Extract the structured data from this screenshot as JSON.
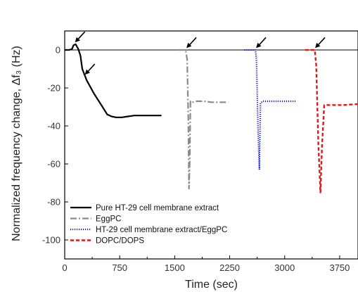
{
  "chart_data": {
    "type": "line",
    "xlabel": "Time (sec)",
    "ylabel": "Normalized frequency change, Δf₃ (Hz)",
    "xlim": [
      0,
      4000
    ],
    "ylim": [
      -110,
      10
    ],
    "x_ticks": [
      0,
      750,
      1500,
      2250,
      3000,
      3750
    ],
    "y_ticks": [
      0,
      -20,
      -40,
      -60,
      -80,
      -100
    ],
    "x_tick_labels": [
      "0",
      "750",
      "1500",
      "2250",
      "3000",
      "3750"
    ],
    "y_tick_labels": [
      "0",
      "-20",
      "-40",
      "-60",
      "-80",
      "-100"
    ],
    "grid": false,
    "legend_position": "bottom-left",
    "reference_line_y": 0,
    "series": [
      {
        "name": "Pure HT-29 cell membrane extract",
        "color": "#000000",
        "style": "solid",
        "x": [
          0,
          60,
          100,
          120,
          150,
          185,
          215,
          240,
          300,
          400,
          500,
          580,
          640,
          700,
          780,
          860,
          950,
          1100,
          1200,
          1320
        ],
        "y": [
          0,
          0,
          0.5,
          2.5,
          3,
          0.5,
          -3,
          -10,
          -16,
          -23,
          -29,
          -34,
          -35,
          -35.5,
          -35.5,
          -35,
          -34.5,
          -34.5,
          -34.5,
          -34.5
        ]
      },
      {
        "name": "EggPC",
        "color": "#8a8a8a",
        "style": "dashdot",
        "x": [
          1550,
          1650,
          1670,
          1685,
          1695,
          1705,
          1715,
          1740,
          1800,
          1900,
          2000,
          2100,
          2230
        ],
        "y": [
          0,
          0,
          -5,
          -35,
          -73,
          -60,
          -27,
          -27.5,
          -27,
          -27,
          -27.5,
          -27.5,
          -27.5
        ]
      },
      {
        "name": "HT-29 cell membrane extract/EggPC",
        "color": "#1a1ad6",
        "style": "dotted",
        "x": [
          2450,
          2600,
          2615,
          2635,
          2655,
          2670,
          2700,
          2800,
          2950,
          3150
        ],
        "y": [
          0,
          0,
          -5,
          -40,
          -63,
          -28,
          -27,
          -27,
          -27,
          -27
        ]
      },
      {
        "name": "DOPC/DOPS",
        "color": "#e01818",
        "style": "dashed",
        "x": [
          3280,
          3410,
          3430,
          3460,
          3488,
          3510,
          3540,
          3650,
          3800,
          4000
        ],
        "y": [
          0,
          0,
          -8,
          -50,
          -75,
          -50,
          -29,
          -29,
          -29,
          -28.5
        ]
      }
    ],
    "annotations": [
      {
        "type": "arrow",
        "x": 140,
        "y": 4
      },
      {
        "type": "arrow",
        "x": 275,
        "y": -13
      },
      {
        "type": "arrow",
        "x": 1660,
        "y": 1
      },
      {
        "type": "arrow",
        "x": 2610,
        "y": 1
      },
      {
        "type": "arrow",
        "x": 3415,
        "y": 1
      }
    ]
  }
}
